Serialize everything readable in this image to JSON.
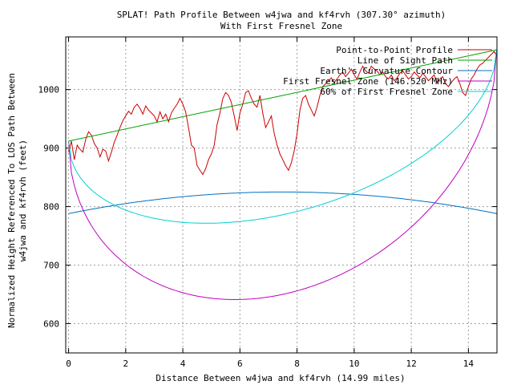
{
  "chart_data": {
    "type": "line",
    "title": "SPLAT! Path Profile Between w4jwa and kf4rvh (307.30° azimuth)",
    "subtitle": "With First Fresnel Zone",
    "xlabel": "Distance Between w4jwa and kf4rvh (14.99 miles)",
    "ylabel_line1": "Normalized Height Referenced To LOS Path Between",
    "ylabel_line2": "w4jwa and kf4rvh (feet)",
    "xlim": [
      -0.1,
      15.0
    ],
    "ylim": [
      550,
      1090
    ],
    "x_ticks": [
      0,
      2,
      4,
      6,
      8,
      10,
      12,
      14
    ],
    "y_ticks": [
      600,
      700,
      800,
      900,
      1000
    ],
    "grid": true,
    "legend_position": "top-right",
    "series": [
      {
        "name": "Point-to-Point Profile",
        "color": "#cc0000",
        "x": [
          0.0,
          0.1,
          0.2,
          0.3,
          0.4,
          0.5,
          0.6,
          0.7,
          0.8,
          0.9,
          1.0,
          1.1,
          1.2,
          1.3,
          1.4,
          1.5,
          1.6,
          1.7,
          1.8,
          1.9,
          2.0,
          2.1,
          2.2,
          2.3,
          2.4,
          2.5,
          2.6,
          2.7,
          2.8,
          2.9,
          3.0,
          3.1,
          3.2,
          3.3,
          3.4,
          3.5,
          3.6,
          3.7,
          3.8,
          3.9,
          4.0,
          4.1,
          4.2,
          4.3,
          4.4,
          4.5,
          4.6,
          4.7,
          4.8,
          4.9,
          5.0,
          5.1,
          5.2,
          5.3,
          5.4,
          5.5,
          5.6,
          5.7,
          5.8,
          5.9,
          6.0,
          6.1,
          6.2,
          6.3,
          6.4,
          6.5,
          6.6,
          6.7,
          6.8,
          6.9,
          7.0,
          7.1,
          7.2,
          7.3,
          7.4,
          7.5,
          7.6,
          7.7,
          7.8,
          7.9,
          8.0,
          8.1,
          8.2,
          8.3,
          8.4,
          8.5,
          8.6,
          8.7,
          8.8,
          8.9,
          9.0,
          9.1,
          9.2,
          9.3,
          9.4,
          9.5,
          9.6,
          9.7,
          9.8,
          9.9,
          10.0,
          10.1,
          10.2,
          10.3,
          10.4,
          10.5,
          10.6,
          10.7,
          10.8,
          10.9,
          11.0,
          11.1,
          11.2,
          11.3,
          11.4,
          11.5,
          11.6,
          11.7,
          11.8,
          11.9,
          12.0,
          12.1,
          12.2,
          12.3,
          12.4,
          12.5,
          12.6,
          12.7,
          12.8,
          12.9,
          13.0,
          13.1,
          13.2,
          13.3,
          13.4,
          13.5,
          13.6,
          13.7,
          13.8,
          13.9,
          14.0,
          14.1,
          14.2,
          14.3,
          14.4,
          14.5,
          14.6,
          14.7,
          14.8,
          14.9,
          14.99
        ],
        "y": [
          893,
          912,
          880,
          905,
          898,
          893,
          915,
          928,
          922,
          908,
          900,
          885,
          898,
          895,
          878,
          893,
          910,
          922,
          935,
          947,
          955,
          963,
          958,
          970,
          975,
          968,
          958,
          972,
          965,
          960,
          955,
          945,
          962,
          950,
          958,
          945,
          960,
          968,
          975,
          985,
          975,
          962,
          935,
          905,
          900,
          870,
          862,
          855,
          865,
          880,
          890,
          905,
          940,
          960,
          985,
          995,
          990,
          978,
          955,
          930,
          960,
          975,
          995,
          998,
          985,
          975,
          970,
          990,
          960,
          935,
          945,
          955,
          925,
          905,
          890,
          880,
          870,
          862,
          875,
          895,
          925,
          965,
          985,
          990,
          975,
          965,
          955,
          970,
          990,
          1005,
          1010,
          1015,
          1020,
          1012,
          1018,
          1025,
          1030,
          1022,
          1028,
          1035,
          1025,
          1018,
          1030,
          1040,
          1032,
          1028,
          1040,
          1035,
          1032,
          1025,
          1030,
          1022,
          1018,
          1025,
          1015,
          1020,
          1028,
          1032,
          1025,
          1018,
          1022,
          1030,
          1025,
          1020,
          1028,
          1022,
          1015,
          1020,
          1025,
          1012,
          1018,
          1022,
          1010,
          1005,
          1012,
          1018,
          1022,
          1010,
          995,
          990,
          1005,
          1018,
          1025,
          1035,
          1042,
          1045,
          1050,
          1055,
          1060,
          1065,
          1058
        ]
      },
      {
        "name": "Line of Sight Path",
        "color": "#00a000",
        "x": [
          0.0,
          14.99
        ],
        "y": [
          912,
          1068
        ]
      },
      {
        "name": "Earth's Curvature Contour",
        "color": "#0070c0",
        "formula": "parabola",
        "endpoints_y": [
          788,
          788
        ],
        "peak": 825
      },
      {
        "name": "First Fresnel Zone (146.520 MHz)",
        "color": "#c000c0",
        "formula": "los_minus_sqrt",
        "depth": 340,
        "endpoints_y": [
          912,
          1068
        ]
      },
      {
        "name": "60% of First Fresnel Zone",
        "color": "#00d0d0",
        "formula": "los_minus_sqrt",
        "depth": 204,
        "endpoints_y": [
          912,
          1068
        ]
      }
    ]
  }
}
